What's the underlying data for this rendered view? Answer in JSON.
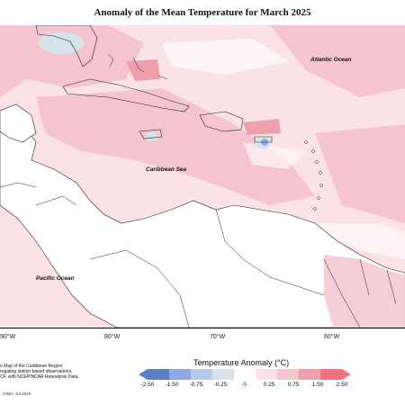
{
  "title": "Anomaly of the Mean Temperature for March 2025",
  "map": {
    "ocean_labels": [
      "Atlantic Ocean",
      "Caribbean Sea",
      "Pacific Ocean"
    ],
    "longitude_labels": [
      "90°W",
      "80°W",
      "70°W",
      "60°W"
    ]
  },
  "legend": {
    "title": "Temperature Anomaly (°C)",
    "ticks": [
      "-2.50",
      "-1.50",
      "-0.75",
      "-0.25",
      "0",
      "0.25",
      "0.75",
      "1.50",
      "2.50"
    ],
    "colors": [
      "#5c7fc6",
      "#8ea8e8",
      "#b9c9ee",
      "#d4e4ea",
      "#ffffff",
      "#fbe2e6",
      "#f5c5cf",
      "#eea0ad",
      "#f0737f"
    ]
  },
  "caption": {
    "line1": "n Map of the Caribbean Region",
    "line2": "regating station based observations,",
    "line3": "CF, with NCEP/NCAR Reanalysis Data."
  },
  "credit": "CIMH: Jul-2025"
}
